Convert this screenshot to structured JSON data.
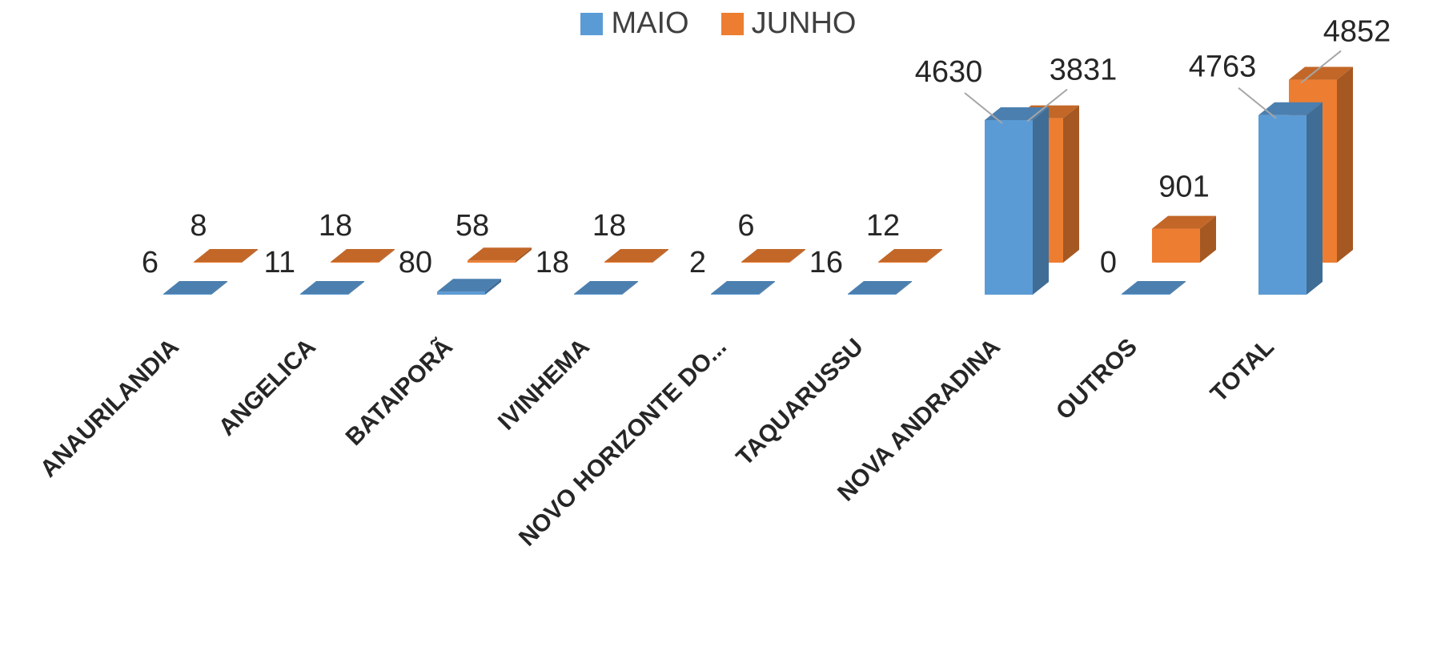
{
  "chart_data": {
    "type": "bar",
    "title": "",
    "xlabel": "",
    "ylabel": "",
    "legend_position": "top-center",
    "grid": false,
    "three_d": true,
    "categories": [
      "ANAURILANDIA",
      "ANGELICA",
      "BATAIPORÃ",
      "IVINHEMA",
      "NOVO HORIZONTE DO...",
      "TAQUARUSSU",
      "NOVA ANDRADINA",
      "OUTROS",
      "TOTAL"
    ],
    "series": [
      {
        "name": "MAIO",
        "color": "#5B9BD5",
        "values": [
          6,
          11,
          80,
          18,
          2,
          16,
          4630,
          0,
          4763
        ]
      },
      {
        "name": "JUNHO",
        "color": "#ED7D31",
        "values": [
          8,
          18,
          58,
          18,
          6,
          12,
          3831,
          901,
          4852
        ]
      }
    ],
    "ylim": [
      0,
      5500
    ]
  }
}
